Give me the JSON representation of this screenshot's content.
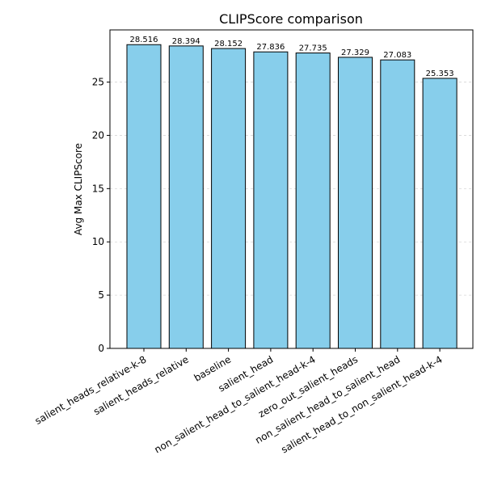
{
  "chart_data": {
    "type": "bar",
    "title": "CLIPScore comparison",
    "xlabel": "",
    "ylabel": "Avg Max CLIPScore",
    "ylim": [
      0,
      29.9
    ],
    "yticks": [
      0,
      5,
      10,
      15,
      20,
      25
    ],
    "grid": "y-dashed",
    "bar_color": "#87ceeb",
    "categories": [
      "salient_heads_relative-k-8",
      "salient_heads_relative",
      "baseline",
      "salient_head",
      "non_salient_head_to_salient_head-k-4",
      "zero_out_salient_heads",
      "non_salient_head_to_salient_head",
      "salient_head_to_non_salient_head-k-4"
    ],
    "values": [
      28.516,
      28.394,
      28.152,
      27.836,
      27.735,
      27.329,
      27.083,
      25.353
    ],
    "value_labels": [
      "28.516",
      "28.394",
      "28.152",
      "27.836",
      "27.735",
      "27.329",
      "27.083",
      "25.353"
    ]
  }
}
